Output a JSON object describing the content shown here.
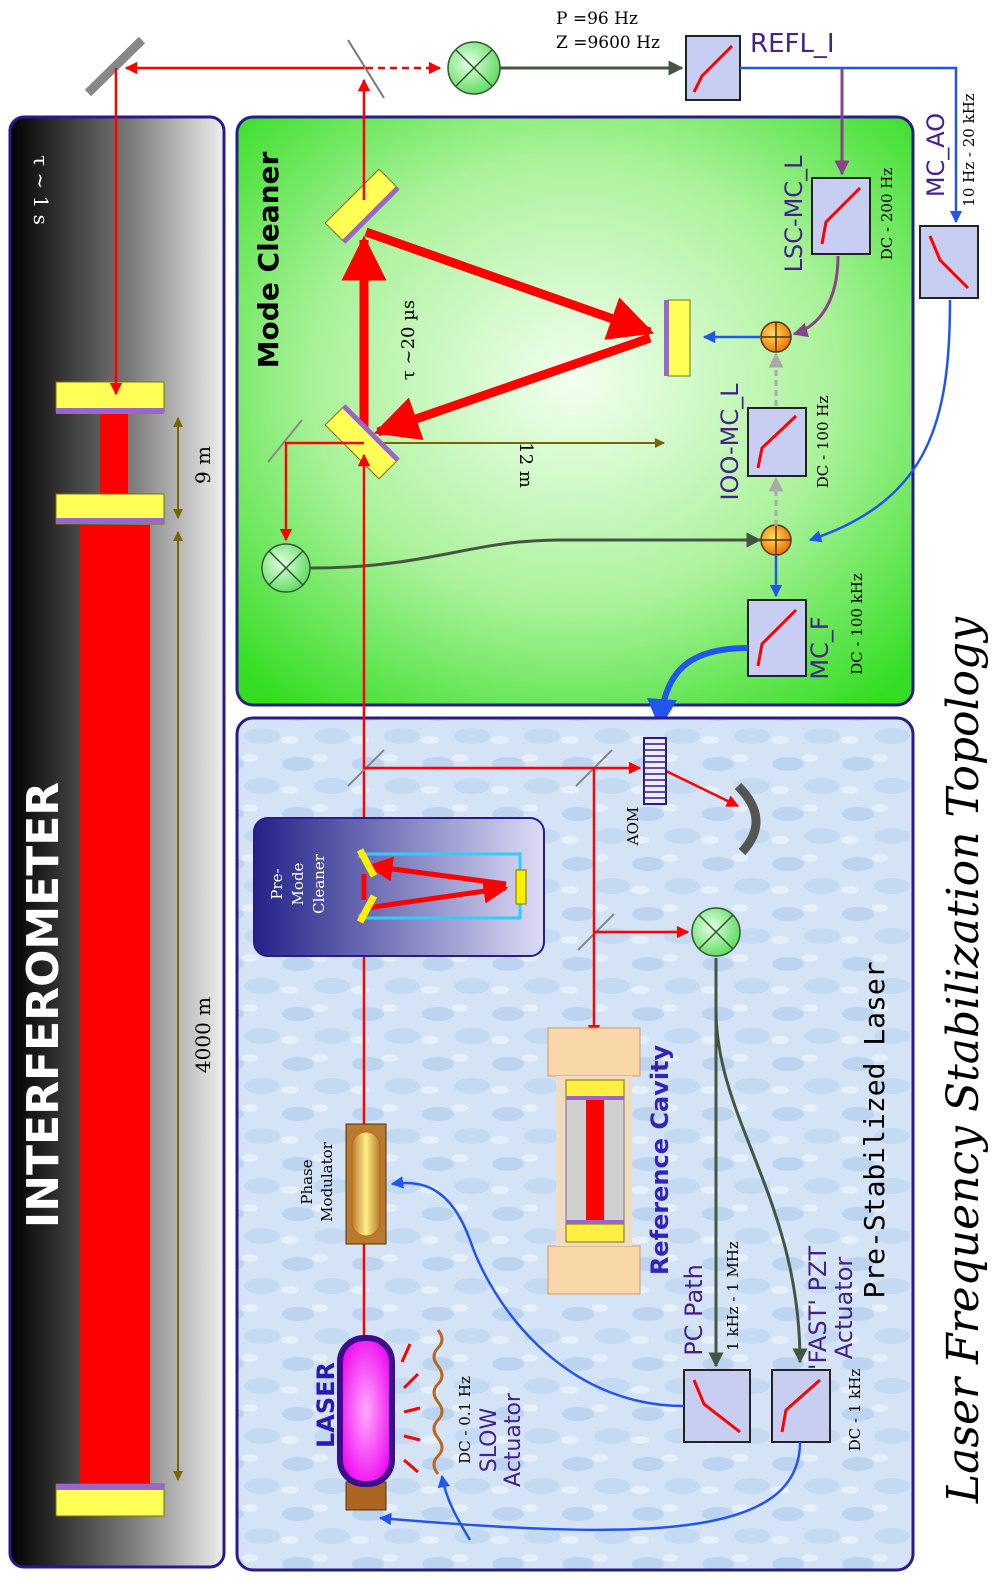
{
  "title": "Laser Frequency Stabilization Topology",
  "interferometer": {
    "label": "INTERFEROMETER",
    "tau": "τ ~ 1 s",
    "arm_length": "4000 m",
    "recycling_length": "9 m"
  },
  "mode_cleaner": {
    "label": "Mode Cleaner",
    "tau": "τ ~20 µs",
    "length": "12 m"
  },
  "psl": {
    "label": "Pre-Stabilized Laser",
    "laser": "LASER",
    "slow_actuator": [
      "SLOW",
      "Actuator"
    ],
    "slow_band": "DC - 0.1 Hz",
    "phase_modulator": [
      "Phase",
      "Modulator"
    ],
    "pmc": [
      "Pre-",
      "Mode",
      "Cleaner"
    ],
    "reference_cavity": "Reference Cavity",
    "aom": "AOM",
    "pc_path": "PC Path",
    "pc_band": "1 kHz - 1 MHz",
    "fast_pzt": [
      "'FAST' PZT",
      "Actuator"
    ],
    "fast_band": "DC - 1 kHz"
  },
  "filters": {
    "pz_p": "P =96 Hz",
    "pz_z": "Z =9600 Hz",
    "refl_i": "REFL_I",
    "mc_ao": "MC_AO",
    "mc_ao_band": "10 Hz - 20 kHz",
    "lsc_mc_l": "LSC-MC_L",
    "lsc_band": "DC - 200 Hz",
    "ioo_mc_l": "IOO-MC_L",
    "ioo_band": "DC - 100 Hz",
    "mc_f": "MC_F",
    "mc_f_band": "DC - 100 kHz"
  },
  "colors": {
    "beam": "#ff0000",
    "mc_green": "#44dd33",
    "psl_blue": "#cfe2f6",
    "box_border": "#2a1a8a",
    "mirror_yellow": "#ffff55",
    "mirror_purple": "#9966cc",
    "filter_fill": "#c8cef2",
    "mixer_green": "#88ee88",
    "summer_orange": "#ff9900",
    "signal_blue": "#2255ee",
    "signal_purple": "#884488",
    "signal_gray": "#445544"
  }
}
